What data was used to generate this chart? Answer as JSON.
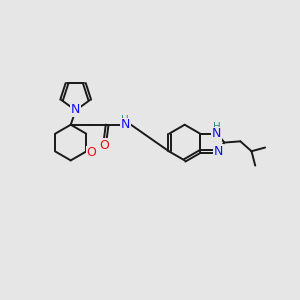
{
  "background_color": "#e6e6e6",
  "bond_color": "#1a1a1a",
  "nitrogen_color": "#1010ee",
  "oxygen_color": "#ee1010",
  "nh_color": "#3a8a8a",
  "bond_width": 1.4,
  "font_size": 8.5,
  "figsize": [
    3.0,
    3.0
  ],
  "dpi": 100,
  "xlim": [
    0,
    12
  ],
  "ylim": [
    1,
    10
  ]
}
